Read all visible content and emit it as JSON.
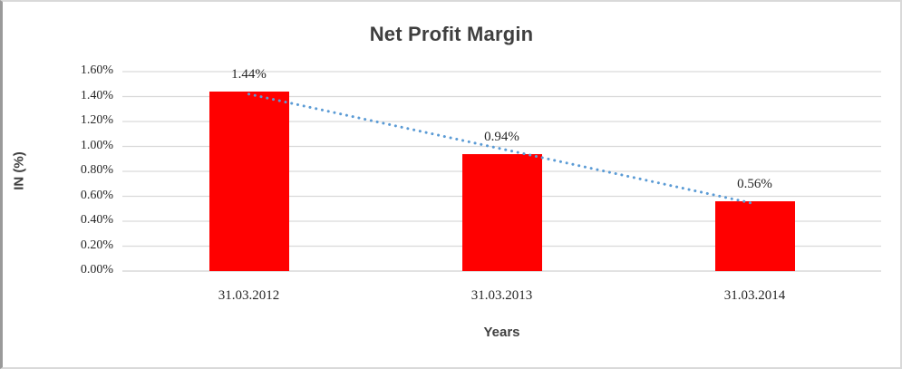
{
  "chart_data": {
    "type": "bar",
    "title": "Net Profit Margin",
    "xlabel": "Years",
    "ylabel": "IN (%)",
    "categories": [
      "31.03.2012",
      "31.03.2013",
      "31.03.2014"
    ],
    "values": [
      1.44,
      0.94,
      0.56
    ],
    "data_labels": [
      "1.44%",
      "0.94%",
      "0.56%"
    ],
    "ylim": [
      0,
      1.6
    ],
    "ytick_step": 0.2,
    "ytick_labels": [
      "0.00%",
      "0.20%",
      "0.40%",
      "0.60%",
      "0.80%",
      "1.00%",
      "1.20%",
      "1.40%",
      "1.60%"
    ],
    "grid": true,
    "legend": "none",
    "bar_color": "#FF0000",
    "trendline": {
      "type": "linear",
      "style": "dotted",
      "color": "#5B9BD5"
    },
    "title_color": "#3F3F3F",
    "axis_title_color": "#3F3F3F",
    "tick_color": "#262626",
    "gridline_color": "#D9D9D9"
  }
}
